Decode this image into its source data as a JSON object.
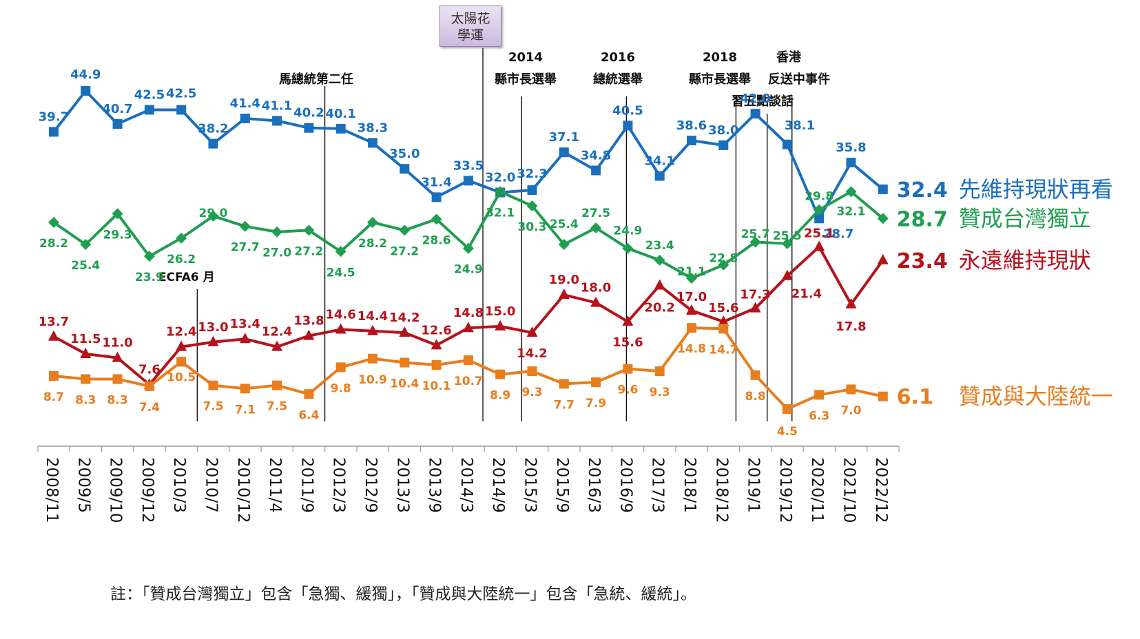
{
  "chart_data": {
    "type": "line",
    "title": "",
    "xlabel": "",
    "ylabel": "",
    "ylim": [
      0,
      50
    ],
    "grid": false,
    "legend_placement": "right (inline labels at series end)",
    "categories": [
      "2008/11",
      "2009/5",
      "2009/10",
      "2009/12",
      "2010/3",
      "2010/7",
      "2010/12",
      "2011/4",
      "2011/9",
      "2012/3",
      "2012/9",
      "2013/3",
      "2013/9",
      "2014/3",
      "2014/9",
      "2015/3",
      "2015/9",
      "2016/3",
      "2016/9",
      "2017/3",
      "2018/1",
      "2018/12",
      "2019/1",
      "2019/12",
      "2020/11",
      "2021/10",
      "2022/12"
    ],
    "series": [
      {
        "name": "先維持現狀再看",
        "color": "#1a6fbd",
        "marker": "square",
        "end_label": "32.4",
        "values": [
          39.7,
          44.9,
          40.7,
          42.5,
          42.5,
          38.2,
          41.4,
          41.1,
          40.2,
          40.1,
          38.3,
          35.0,
          31.4,
          33.5,
          32.0,
          32.3,
          37.1,
          34.8,
          40.5,
          34.1,
          38.6,
          38.0,
          42.0,
          38.1,
          28.7,
          35.8,
          32.4
        ]
      },
      {
        "name": "贊成台灣獨立",
        "color": "#1f9e50",
        "marker": "diamond",
        "end_label": "28.7",
        "values": [
          28.2,
          25.4,
          29.3,
          23.9,
          26.2,
          29.0,
          27.7,
          27.0,
          27.2,
          24.5,
          28.2,
          27.2,
          28.6,
          24.9,
          32.1,
          30.3,
          25.4,
          27.5,
          24.9,
          23.4,
          21.1,
          22.8,
          25.7,
          25.5,
          29.8,
          32.1,
          28.7
        ]
      },
      {
        "name": "永遠維持現狀",
        "color": "#b5121b",
        "marker": "triangle",
        "end_label": "23.4",
        "values": [
          13.7,
          11.5,
          11.0,
          7.6,
          12.4,
          13.0,
          13.4,
          12.4,
          13.8,
          14.6,
          14.4,
          14.2,
          12.6,
          14.8,
          15.0,
          14.2,
          19.0,
          18.0,
          15.6,
          20.2,
          17.0,
          15.6,
          17.3,
          21.4,
          25.1,
          17.8,
          23.4
        ]
      },
      {
        "name": "贊成與大陸統一",
        "color": "#e87d1e",
        "marker": "square",
        "end_label": "6.1",
        "values": [
          8.7,
          8.3,
          8.3,
          7.4,
          10.5,
          7.5,
          7.1,
          7.5,
          6.4,
          9.8,
          10.9,
          10.4,
          10.1,
          10.7,
          8.9,
          9.3,
          7.7,
          7.9,
          9.6,
          9.3,
          14.8,
          14.7,
          8.8,
          4.5,
          6.3,
          7.0,
          6.1
        ]
      }
    ],
    "events": [
      {
        "label": "ECFA6 月",
        "after_index": 4
      },
      {
        "label": "馬總統第二任",
        "after_index": 8
      },
      {
        "label": "太陽花學運",
        "after_index": 13
      },
      {
        "label": "2014 縣市長選舉",
        "after_index": 14
      },
      {
        "label": "2016 總統選舉",
        "at_index": 18
      },
      {
        "label": "2018 縣市長選舉",
        "after_index": 21
      },
      {
        "label": "習五點談話",
        "after_index": 22
      },
      {
        "label": "香港 反送中事件",
        "at_index": 23
      }
    ]
  },
  "annotations": {
    "ecfa": "ECFA6 月",
    "ma_second": "馬總統第二任",
    "sunflower_line1": "太陽花",
    "sunflower_line2": "學運",
    "y2014": "2014",
    "local2014": "縣市長選舉",
    "y2016": "2016",
    "pres2016": "總統選舉",
    "y2018": "2018",
    "local2018": "縣市長選舉",
    "hk_line1": "香港",
    "hk_line2": "反送中事件",
    "xi": "習五點談話"
  },
  "note": "註：「贊成台灣獨立」包含「急獨、緩獨」，「贊成與大陸統一」包含「急統、緩統」。"
}
